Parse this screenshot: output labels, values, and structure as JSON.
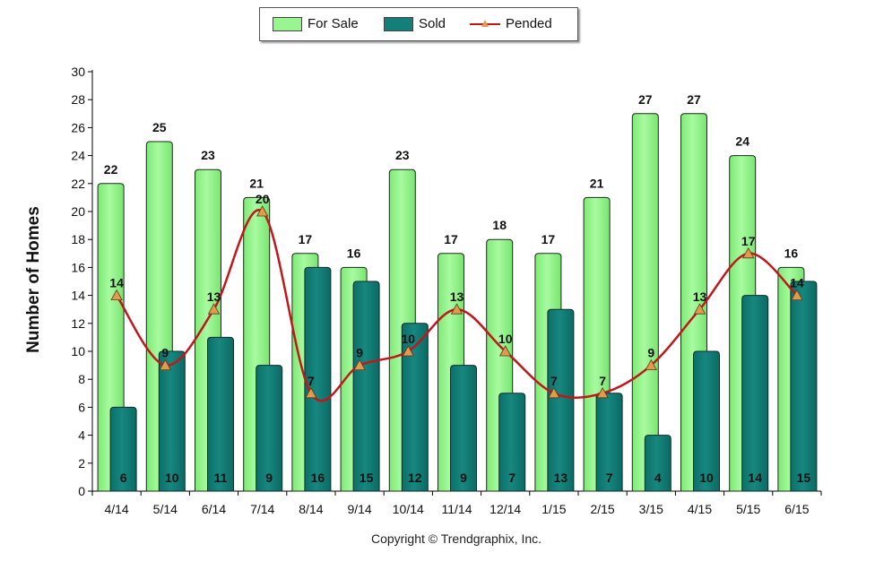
{
  "chart_data": {
    "type": "bar",
    "title": "",
    "xlabel": "",
    "ylabel": "Number of Homes",
    "ylim": [
      0,
      30
    ],
    "ytick_step": 2,
    "grid": false,
    "legend_position": "top-center",
    "categories": [
      "4/14",
      "5/14",
      "6/14",
      "7/14",
      "8/14",
      "9/14",
      "10/14",
      "11/14",
      "12/14",
      "1/15",
      "2/15",
      "3/15",
      "4/15",
      "5/15",
      "6/15"
    ],
    "series": [
      {
        "name": "For Sale",
        "kind": "bar",
        "color": "#98f590",
        "values": [
          22,
          25,
          23,
          21,
          17,
          16,
          23,
          17,
          18,
          17,
          21,
          27,
          27,
          24,
          16
        ]
      },
      {
        "name": "Sold",
        "kind": "bar",
        "color": "#137f78",
        "values": [
          6,
          10,
          11,
          9,
          16,
          15,
          12,
          9,
          7,
          13,
          7,
          4,
          10,
          14,
          15
        ]
      },
      {
        "name": "Pended",
        "kind": "line",
        "color": "#c0171b",
        "marker_color": "#e39a4d",
        "values": [
          14,
          9,
          13,
          20,
          7,
          9,
          10,
          13,
          10,
          7,
          7,
          9,
          13,
          17,
          14
        ]
      }
    ],
    "footer": "Copyright © Trendgraphix, Inc."
  }
}
